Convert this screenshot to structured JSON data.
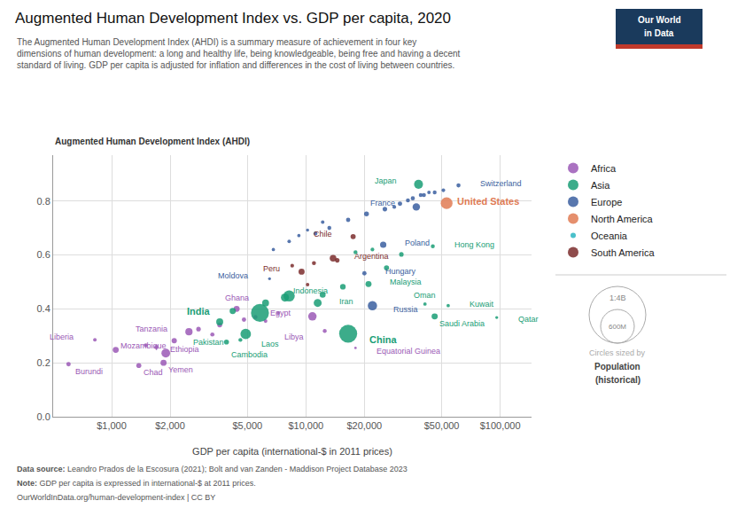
{
  "chart_data": {
    "type": "scatter",
    "title": "Augmented Human Development Index vs. GDP per capita, 2020",
    "subtitle": "The Augmented Human Development Index (AHDI) is a summary measure of achievement in four key\ndimensions of human development: a long and healthy life, being knowledgeable, being free and having a decent\nstandard of living. GDP per capita is adjusted for inflation and differences in the cost of living between countries.",
    "xlabel": "GDP per capita (international-$ in 2011 prices)",
    "ylabel": "Augmented Human Development Index (AHDI)",
    "log": "x",
    "xlim": [
      500,
      145000
    ],
    "ylim": [
      0,
      0.97
    ],
    "xticks": [
      {
        "value": 1000,
        "label": "$1,000"
      },
      {
        "value": 2000,
        "label": "$2,000"
      },
      {
        "value": 5000,
        "label": "$5,000"
      },
      {
        "value": 10000,
        "label": "$10,000"
      },
      {
        "value": 20000,
        "label": "$20,000"
      },
      {
        "value": 50000,
        "label": "$50,000"
      },
      {
        "value": 100000,
        "label": "$100,000"
      }
    ],
    "yticks": [
      {
        "value": 0,
        "label": "0.0"
      },
      0.2,
      0.4,
      0.6,
      0.8
    ],
    "grid": true,
    "legend": "right",
    "series": [
      {
        "name": "Africa",
        "color": "#9B59B6",
        "x": [
          5500,
          6200,
          7200,
          2800,
          3300,
          1500,
          1700,
          2100,
          3600,
          4800,
          600,
          820,
          1050,
          1380,
          1900,
          2500,
          4400,
          18000,
          1850,
          10800,
          12500
        ],
        "y": [
          0.37,
          0.355,
          0.385,
          0.325,
          0.305,
          0.265,
          0.258,
          0.282,
          0.34,
          0.36,
          0.195,
          0.285,
          0.248,
          0.19,
          0.236,
          0.315,
          0.4,
          0.255,
          0.2,
          0.372,
          0.318
        ],
        "size": [
          8,
          6,
          5,
          12,
          9,
          7,
          10,
          20,
          15,
          10,
          11,
          5,
          32,
          17,
          115,
          60,
          32,
          1.4,
          33,
          102,
          7
        ],
        "labels": [
          null,
          null,
          null,
          null,
          null,
          null,
          null,
          null,
          null,
          null,
          "Burundi",
          "Liberia",
          "Mozambique",
          "Chad",
          "Ethiopia",
          "Tanzania",
          "Ghana",
          "Equatorial Guinea",
          "Yemen",
          "Egypt",
          "Libya"
        ]
      },
      {
        "name": "Asia",
        "color": "#1A9E76",
        "x": [
          7800,
          12200,
          15500,
          6200,
          4200,
          3600,
          26000,
          31000,
          18000,
          22000,
          4900,
          3900,
          4600,
          5800,
          8200,
          16500,
          11500,
          21000,
          45000,
          54000,
          96000,
          41000,
          46000,
          38000
        ],
        "y": [
          0.442,
          0.452,
          0.482,
          0.422,
          0.392,
          0.352,
          0.552,
          0.602,
          0.61,
          0.62,
          0.307,
          0.277,
          0.285,
          0.385,
          0.448,
          0.308,
          0.422,
          0.492,
          0.632,
          0.412,
          0.368,
          0.418,
          0.372,
          0.862
        ],
        "size": [
          90,
          30,
          25,
          50,
          35,
          55,
          18,
          12,
          8,
          6,
          220,
          17,
          7,
          1380,
          274,
          1411,
          84,
          32,
          7.5,
          4.3,
          2.9,
          4.5,
          35,
          126
        ],
        "labels": [
          null,
          null,
          null,
          null,
          null,
          null,
          null,
          null,
          null,
          null,
          "Pakistan",
          "Cambodia",
          "Laos",
          "India",
          "Indonesia",
          "China",
          "Iran",
          "Malaysia",
          "Hong Kong",
          "Kuwait",
          "Qatar",
          "Oman",
          "Saudi Arabia",
          "Japan"
        ]
      },
      {
        "name": "Europe",
        "color": "#3B5FA0",
        "x": [
          6800,
          8200,
          11200,
          13200,
          16500,
          20500,
          25500,
          30500,
          35500,
          40500,
          46000,
          51000,
          9200,
          10200,
          12200,
          28500,
          33500,
          39000,
          43000,
          6500,
          20000,
          25000,
          22000,
          37000,
          61000
        ],
        "y": [
          0.62,
          0.65,
          0.68,
          0.7,
          0.73,
          0.752,
          0.77,
          0.79,
          0.81,
          0.822,
          0.832,
          0.84,
          0.672,
          0.692,
          0.722,
          0.778,
          0.802,
          0.822,
          0.832,
          0.512,
          0.532,
          0.638,
          0.412,
          0.778,
          0.858
        ],
        "size": [
          4,
          5,
          7,
          8,
          10,
          15,
          12,
          11,
          9,
          8,
          7,
          6,
          4,
          3,
          5,
          6,
          8,
          7,
          5,
          2.6,
          10,
          38,
          145,
          67,
          8.7
        ],
        "labels": [
          null,
          null,
          null,
          null,
          null,
          null,
          null,
          null,
          null,
          null,
          null,
          null,
          null,
          null,
          null,
          null,
          null,
          null,
          null,
          "Moldova",
          "Hungary",
          "Poland",
          "Russia",
          "France",
          "Switzerland"
        ]
      },
      {
        "name": "North America",
        "color": "#E07B54",
        "x": [
          53000
        ],
        "y": [
          0.792
        ],
        "size": [
          330
        ],
        "labels": [
          "United States"
        ]
      },
      {
        "name": "Oceania",
        "color": "#2AB5C1",
        "x": [],
        "y": [],
        "size": [],
        "labels": []
      },
      {
        "name": "South America",
        "color": "#7B2D2D",
        "x": [
          8500,
          11000,
          14500,
          10200,
          9500,
          13800,
          17500
        ],
        "y": [
          0.56,
          0.57,
          0.58,
          0.49,
          0.538,
          0.588,
          0.668
        ],
        "size": [
          6,
          8,
          12,
          5,
          33,
          45,
          19
        ],
        "labels": [
          null,
          null,
          null,
          null,
          "Peru",
          "Argentina",
          "Chile"
        ]
      }
    ],
    "size_legend": {
      "labels": [
        "1:4B",
        "600M"
      ],
      "title": [
        "Circles sized by",
        "Population",
        "(historical)"
      ]
    },
    "footer": [
      {
        "label": "Data source:",
        "text": " Leandro Prados de la Escosura (2021); Bolt and van Zanden - Maddison Project Database 2023"
      },
      {
        "label": "Note:",
        "text": " GDP per capita is expressed in international-$ at 2011 prices."
      },
      {
        "text": "OurWorldInData.org/human-development-index | CC BY"
      }
    ],
    "logo": {
      "text": [
        "Our World",
        "in Data"
      ],
      "colors": [
        "#1a3a5c",
        "#C0392B"
      ]
    }
  }
}
